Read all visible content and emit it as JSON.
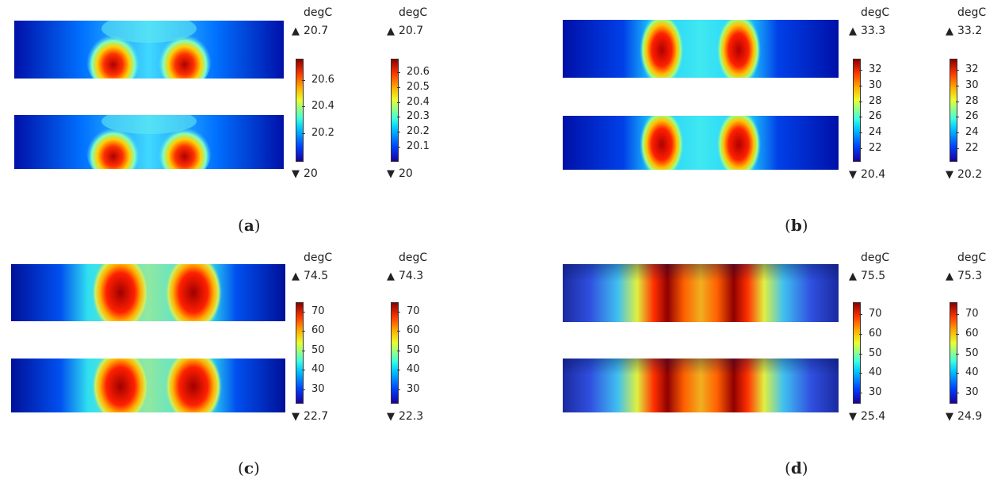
{
  "panels": [
    {
      "id": "a",
      "caption_open": "(",
      "caption_letter": "a",
      "caption_close": ")",
      "colorbars": [
        {
          "unit": "degC",
          "max": "20.7",
          "min": "20",
          "ticks": [
            "20.6",
            "20.4",
            "20.2"
          ]
        },
        {
          "unit": "degC",
          "max": "20.7",
          "min": "20",
          "ticks": [
            "20.6",
            "20.5",
            "20.4",
            "20.3",
            "20.2",
            "20.1"
          ]
        }
      ]
    },
    {
      "id": "b",
      "caption_open": "(",
      "caption_letter": "b",
      "caption_close": ")",
      "colorbars": [
        {
          "unit": "degC",
          "max": "33.3",
          "min": "20.4",
          "ticks": [
            "32",
            "30",
            "28",
            "26",
            "24",
            "22"
          ]
        },
        {
          "unit": "degC",
          "max": "33.2",
          "min": "20.2",
          "ticks": [
            "32",
            "30",
            "28",
            "26",
            "24",
            "22"
          ]
        }
      ]
    },
    {
      "id": "c",
      "caption_open": "(",
      "caption_letter": "c",
      "caption_close": ")",
      "colorbars": [
        {
          "unit": "degC",
          "max": "74.5",
          "min": "22.7",
          "ticks": [
            "70",
            "60",
            "50",
            "40",
            "30"
          ]
        },
        {
          "unit": "degC",
          "max": "74.3",
          "min": "22.3",
          "ticks": [
            "70",
            "60",
            "50",
            "40",
            "30"
          ]
        }
      ]
    },
    {
      "id": "d",
      "caption_open": "(",
      "caption_letter": "d",
      "caption_close": ")",
      "colorbars": [
        {
          "unit": "degC",
          "max": "75.5",
          "min": "25.4",
          "ticks": [
            "70",
            "60",
            "50",
            "40",
            "30"
          ]
        },
        {
          "unit": "degC",
          "max": "75.3",
          "min": "24.9",
          "ticks": [
            "70",
            "60",
            "50",
            "40",
            "30"
          ]
        }
      ]
    }
  ],
  "symbols": {
    "max_marker": "▲",
    "min_marker": "▼"
  },
  "colors": {
    "cold": "#0018b0",
    "cyan": "#30e0e8",
    "yellow": "#f0e030",
    "hot": "#d01000",
    "core": "#8a0000"
  }
}
